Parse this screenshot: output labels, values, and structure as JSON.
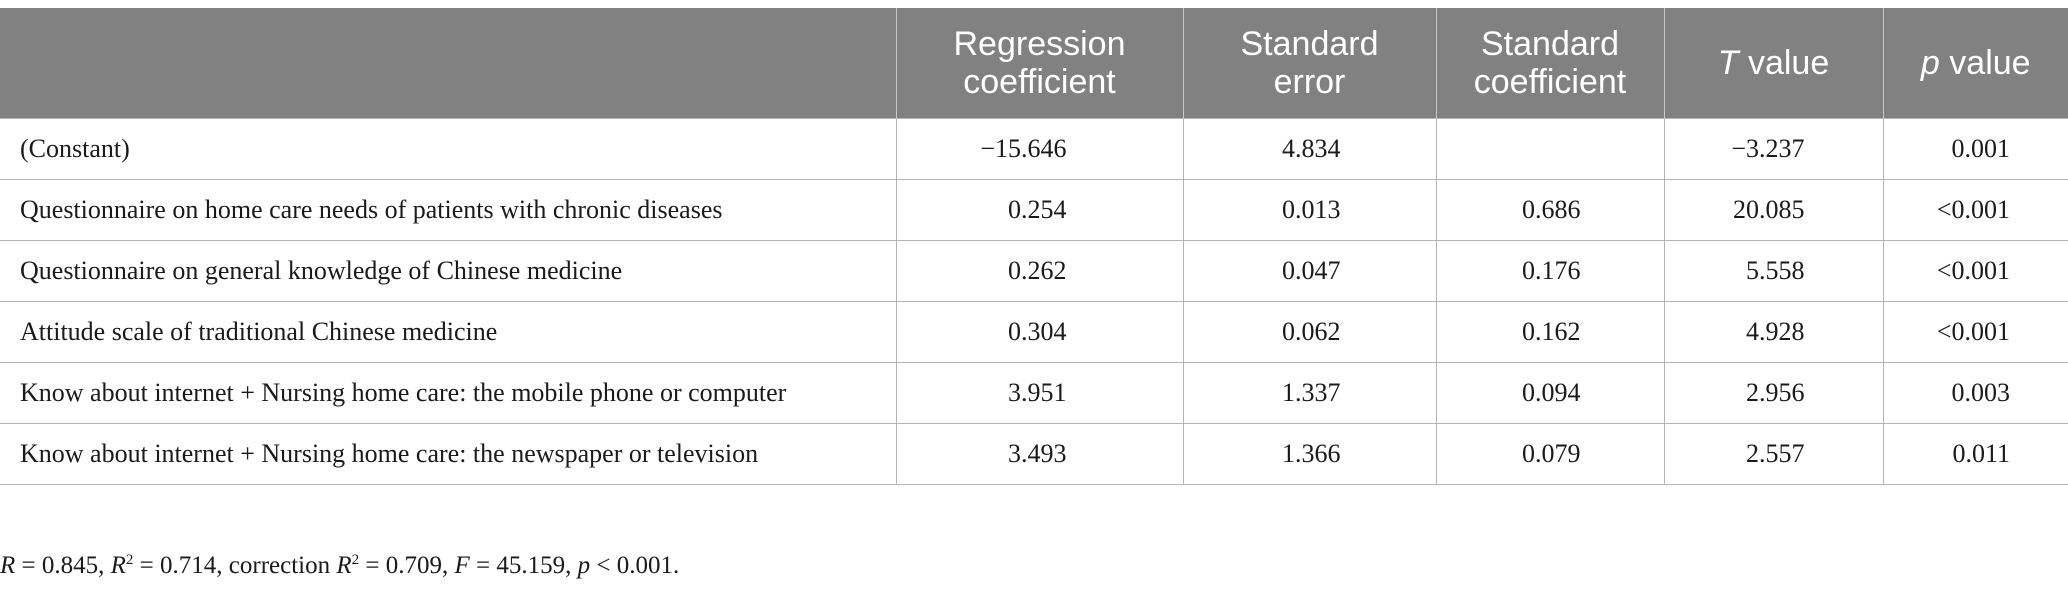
{
  "table": {
    "headers": [
      {
        "line1": "",
        "line2": ""
      },
      {
        "line1": "Regression",
        "line2": "coefficient"
      },
      {
        "line1": "Standard",
        "line2": "error"
      },
      {
        "line1": "Standard",
        "line2": "coefficient"
      },
      {
        "italic": "T",
        "rest": " value"
      },
      {
        "italic": "p",
        "rest": " value"
      }
    ],
    "rows": [
      {
        "label": "(Constant)",
        "coef": "−15.646",
        "se": "4.834",
        "std_coef": "",
        "t": "−3.237",
        "p": "0.001"
      },
      {
        "label": "Questionnaire on home care needs of patients with chronic diseases",
        "coef": "0.254",
        "se": "0.013",
        "std_coef": "0.686",
        "t": "20.085",
        "p": "<0.001"
      },
      {
        "label": "Questionnaire on general knowledge of Chinese medicine",
        "coef": "0.262",
        "se": "0.047",
        "std_coef": "0.176",
        "t": "5.558",
        "p": "<0.001"
      },
      {
        "label": "Attitude scale of traditional Chinese medicine",
        "coef": "0.304",
        "se": "0.062",
        "std_coef": "0.162",
        "t": "4.928",
        "p": "<0.001"
      },
      {
        "label": "Know about internet + Nursing home care: the mobile phone or computer",
        "coef": "3.951",
        "se": "1.337",
        "std_coef": "0.094",
        "t": "2.956",
        "p": "0.003"
      },
      {
        "label": "Know about internet + Nursing home care: the newspaper or television",
        "coef": "3.493",
        "se": "1.366",
        "std_coef": "0.079",
        "t": "2.557",
        "p": "0.011"
      }
    ]
  },
  "footnote": {
    "r_sym": "R",
    "r_text": " = 0.845, ",
    "r2_sym": "R",
    "r2_sup": "2",
    "r2_text": " = 0.714, correction ",
    "adjr2_sym": "R",
    "adjr2_sup": "2",
    "adjr2_text": " = 0.709, ",
    "f_sym": "F",
    "f_text": " = 45.159, ",
    "p_sym": "p",
    "p_text": " < 0.001."
  }
}
